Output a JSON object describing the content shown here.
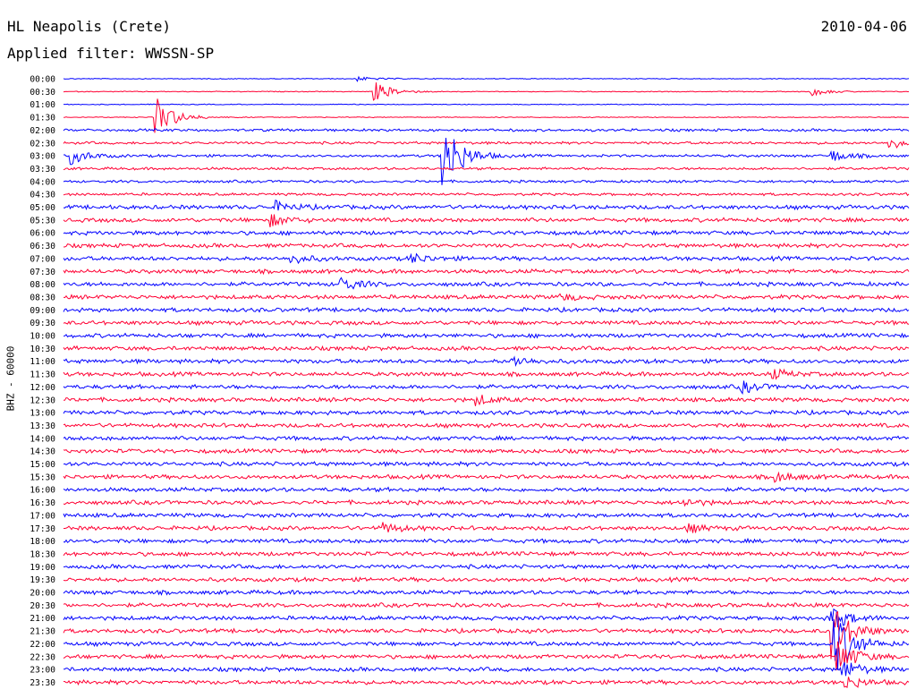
{
  "header": {
    "station": "HL Neapolis (Crete)",
    "date": "2010-04-06",
    "filter": "Applied filter: WWSSN-SP"
  },
  "chart_data": {
    "type": "line",
    "ylabel": "BHZ - 60000",
    "time_labels": [
      "00:00",
      "00:30",
      "01:00",
      "01:30",
      "02:00",
      "02:30",
      "03:00",
      "03:30",
      "04:00",
      "04:30",
      "05:00",
      "05:30",
      "06:00",
      "06:30",
      "07:00",
      "07:30",
      "08:00",
      "08:30",
      "09:00",
      "09:30",
      "10:00",
      "10:30",
      "11:00",
      "11:30",
      "12:00",
      "12:30",
      "13:00",
      "13:30",
      "14:00",
      "14:30",
      "15:00",
      "15:30",
      "16:00",
      "16:30",
      "17:00",
      "17:30",
      "18:00",
      "18:30",
      "19:00",
      "19:30",
      "20:00",
      "20:30",
      "21:00",
      "21:30",
      "22:00",
      "22:30",
      "23:00",
      "23:30"
    ],
    "trace_colors": [
      "#0000ff",
      "#ff0033"
    ],
    "minutes_per_line": 30,
    "events": [
      {
        "line": 0,
        "minute": 10.3,
        "amplitude": 3
      },
      {
        "line": 1,
        "minute": 11.0,
        "amplitude": 12
      },
      {
        "line": 1,
        "minute": 26.5,
        "amplitude": 5
      },
      {
        "line": 3,
        "minute": 3.2,
        "amplitude": 28
      },
      {
        "line": 5,
        "minute": 29.2,
        "amplitude": 8
      },
      {
        "line": 6,
        "minute": 0.2,
        "amplitude": 10
      },
      {
        "line": 6,
        "minute": 13.4,
        "amplitude": 50
      },
      {
        "line": 6,
        "minute": 27.2,
        "amplitude": 7
      },
      {
        "line": 10,
        "minute": 7.5,
        "amplitude": 6
      },
      {
        "line": 11,
        "minute": 7.3,
        "amplitude": 7
      },
      {
        "line": 14,
        "minute": 8.0,
        "amplitude": 6
      },
      {
        "line": 14,
        "minute": 12.3,
        "amplitude": 6
      },
      {
        "line": 16,
        "minute": 9.8,
        "amplitude": 8
      },
      {
        "line": 17,
        "minute": 17.6,
        "amplitude": 4
      },
      {
        "line": 22,
        "minute": 15.9,
        "amplitude": 6
      },
      {
        "line": 23,
        "minute": 25.1,
        "amplitude": 6
      },
      {
        "line": 24,
        "minute": 24.0,
        "amplitude": 7
      },
      {
        "line": 25,
        "minute": 14.6,
        "amplitude": 6
      },
      {
        "line": 31,
        "minute": 25.2,
        "amplitude": 6
      },
      {
        "line": 33,
        "minute": 21.9,
        "amplitude": 5
      },
      {
        "line": 35,
        "minute": 11.3,
        "amplitude": 6
      },
      {
        "line": 35,
        "minute": 22.1,
        "amplitude": 5
      },
      {
        "line": 42,
        "minute": 27.1,
        "amplitude": 18
      },
      {
        "line": 43,
        "minute": 27.2,
        "amplitude": 38
      },
      {
        "line": 44,
        "minute": 27.3,
        "amplitude": 40
      },
      {
        "line": 45,
        "minute": 27.4,
        "amplitude": 22
      },
      {
        "line": 46,
        "minute": 27.6,
        "amplitude": 12
      },
      {
        "line": 47,
        "minute": 27.7,
        "amplitude": 8
      }
    ]
  }
}
